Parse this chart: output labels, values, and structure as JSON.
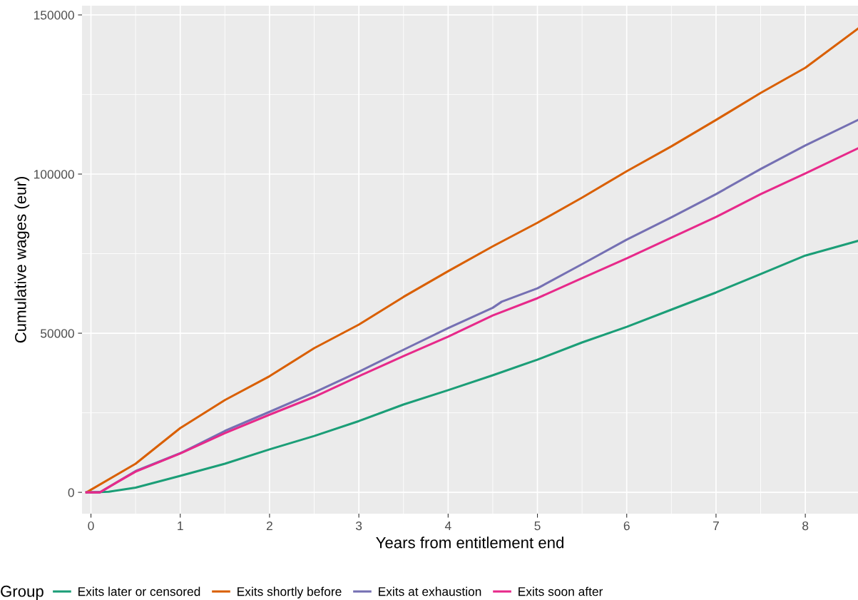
{
  "chart_data": {
    "type": "line",
    "xlabel": "Years from entitlement end",
    "ylabel": "Cumulative wages (eur)",
    "legend_title": "Group",
    "xlim": [
      -0.1,
      8.59
    ],
    "xticks": [
      0,
      1,
      2,
      3,
      4,
      5,
      6,
      7,
      8
    ],
    "ylim": [
      -6700,
      152900
    ],
    "yticks": [
      0,
      50000,
      100000,
      150000
    ],
    "grid": true,
    "legend": "bottom",
    "marker": "none",
    "line_style": "solid",
    "series": [
      {
        "name": "Exits later or censored",
        "color": "#1b9e77",
        "x": [
          0,
          0.2,
          0.5,
          1,
          1.5,
          2,
          2.5,
          3,
          3.5,
          4,
          4.5,
          5,
          5.5,
          6,
          6.5,
          7,
          7.5,
          8,
          8.59
        ],
        "values": [
          0,
          200,
          1500,
          5200,
          9000,
          13500,
          17700,
          22400,
          27600,
          32100,
          36800,
          41700,
          47100,
          52000,
          57400,
          62800,
          68600,
          74400,
          79000
        ]
      },
      {
        "name": "Exits shortly before",
        "color": "#d95f02",
        "x": [
          -0.05,
          0.5,
          1,
          1.5,
          2,
          2.5,
          3,
          3.5,
          4,
          4.5,
          5,
          5.5,
          6,
          6.5,
          7,
          7.5,
          8,
          8.59
        ],
        "values": [
          0,
          9000,
          20200,
          29000,
          36500,
          45300,
          52700,
          61400,
          69500,
          77300,
          84700,
          92600,
          100900,
          108700,
          117000,
          125500,
          133400,
          145700
        ]
      },
      {
        "name": "Exits at exhaustion",
        "color": "#7570b3",
        "x": [
          -0.05,
          0.1,
          0.5,
          1,
          1.5,
          2,
          2.5,
          3,
          3.5,
          4,
          4.5,
          4.6,
          5,
          5.5,
          6,
          6.5,
          7,
          7.5,
          8,
          8.59
        ],
        "values": [
          0,
          0,
          6700,
          12300,
          19300,
          25300,
          31400,
          37900,
          44800,
          51600,
          58000,
          59900,
          64100,
          71700,
          79400,
          86400,
          93700,
          101600,
          109000,
          117000
        ]
      },
      {
        "name": "Exits soon after",
        "color": "#e7298a",
        "x": [
          -0.05,
          0.1,
          0.3,
          0.5,
          1,
          1.5,
          2,
          2.5,
          3,
          3.5,
          4,
          4.5,
          5,
          5.5,
          6,
          6.5,
          7,
          7.5,
          8,
          8.59
        ],
        "values": [
          0,
          0,
          3300,
          6500,
          12200,
          18600,
          24400,
          30000,
          36500,
          42800,
          48900,
          55600,
          61000,
          67300,
          73500,
          80000,
          86500,
          93700,
          100200,
          108100
        ]
      }
    ]
  }
}
